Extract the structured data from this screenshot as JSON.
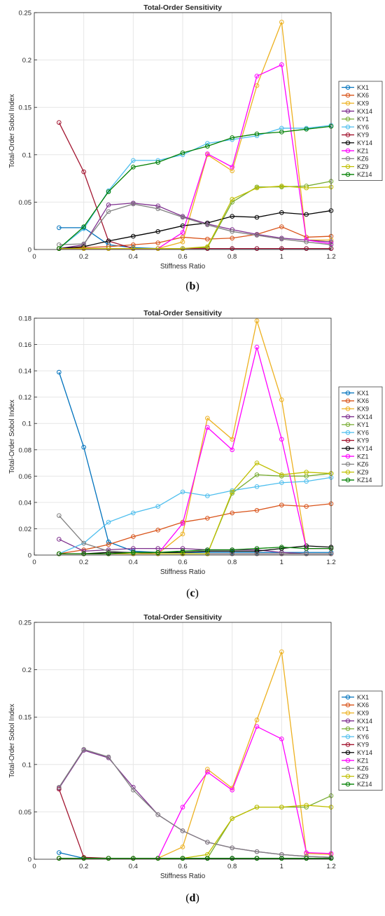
{
  "series_colors": {
    "KX1": "#0072bd",
    "KX6": "#d95319",
    "KX9": "#edb120",
    "KX14": "#7e2f8e",
    "KY1": "#77ac30",
    "KY6": "#4dbeee",
    "KY9": "#a2142f",
    "KY14": "#000000",
    "KZ1": "#ff00ff",
    "KZ6": "#808080",
    "KZ9": "#bfbf00",
    "KZ14": "#007f00"
  },
  "panels": [
    {
      "caption_open": "(",
      "caption_letter": "b",
      "caption_close": ")",
      "chart_data": {
        "type": "line",
        "title": "Total-Order Sensitivity",
        "xlabel": "Stiffness Ratio",
        "ylabel": "Total-Order Sobol Index",
        "xlim": [
          0,
          1.2
        ],
        "ylim": [
          0,
          0.25
        ],
        "x_ticks": [
          "0",
          "0.2",
          "0.4",
          "0.6",
          "0.8",
          "1",
          "1.2"
        ],
        "y_ticks": [
          "0",
          "0.05",
          "0.1",
          "0.15",
          "0.2",
          "0.25"
        ],
        "grid": true,
        "legend_position": "right",
        "x": [
          0.1,
          0.2,
          0.3,
          0.4,
          0.5,
          0.6,
          0.7,
          0.8,
          0.9,
          1.0,
          1.1,
          1.2
        ],
        "series": [
          {
            "name": "KX1",
            "values": [
              0.023,
              0.023,
              0.005,
              0.002,
              0.001,
              0.001,
              0.001,
              0.001,
              0.001,
              0.001,
              0.001,
              0.001
            ]
          },
          {
            "name": "KX6",
            "values": [
              0.001,
              0.002,
              0.003,
              0.005,
              0.007,
              0.013,
              0.011,
              0.012,
              0.016,
              0.024,
              0.013,
              0.014
            ]
          },
          {
            "name": "KX9",
            "values": [
              0.001,
              0.001,
              0.001,
              0.001,
              0.001,
              0.008,
              0.1,
              0.083,
              0.173,
              0.24,
              0.01,
              0.01
            ]
          },
          {
            "name": "KX14",
            "values": [
              0.001,
              0.005,
              0.047,
              0.049,
              0.046,
              0.035,
              0.027,
              0.021,
              0.016,
              0.012,
              0.01,
              0.008
            ]
          },
          {
            "name": "KY1",
            "values": [
              0.001,
              0.001,
              0.001,
              0.001,
              0.001,
              0.001,
              0.002,
              0.05,
              0.066,
              0.066,
              0.067,
              0.072
            ]
          },
          {
            "name": "KY6",
            "values": [
              0.001,
              0.022,
              0.062,
              0.094,
              0.094,
              0.1,
              0.112,
              0.116,
              0.12,
              0.128,
              0.128,
              0.131
            ]
          },
          {
            "name": "KY9",
            "values": [
              0.134,
              0.082,
              0.009,
              0.001,
              0.001,
              0.001,
              0.001,
              0.001,
              0.001,
              0.001,
              0.001,
              0.001
            ]
          },
          {
            "name": "KY14",
            "values": [
              0.001,
              0.003,
              0.009,
              0.014,
              0.019,
              0.025,
              0.028,
              0.035,
              0.034,
              0.039,
              0.037,
              0.041
            ]
          },
          {
            "name": "KZ1",
            "values": [
              0.001,
              0.001,
              0.001,
              0.001,
              0.001,
              0.018,
              0.101,
              0.087,
              0.183,
              0.195,
              0.01,
              0.006
            ]
          },
          {
            "name": "KZ6",
            "values": [
              0.005,
              0.006,
              0.04,
              0.048,
              0.043,
              0.034,
              0.026,
              0.019,
              0.015,
              0.011,
              0.008,
              0.005
            ]
          },
          {
            "name": "KZ9",
            "values": [
              0.001,
              0.001,
              0.001,
              0.001,
              0.001,
              0.001,
              0.003,
              0.053,
              0.065,
              0.067,
              0.065,
              0.066
            ]
          },
          {
            "name": "KZ14",
            "values": [
              0.001,
              0.024,
              0.061,
              0.087,
              0.092,
              0.102,
              0.109,
              0.118,
              0.122,
              0.124,
              0.127,
              0.13
            ]
          }
        ]
      }
    },
    {
      "caption_open": "(",
      "caption_letter": "c",
      "caption_close": ")",
      "chart_data": {
        "type": "line",
        "title": "Total-Order Sensitivity",
        "xlabel": "Stiffness Ratio",
        "ylabel": "Total-Order Sobol Index",
        "xlim": [
          0,
          1.2
        ],
        "ylim": [
          0,
          0.18
        ],
        "x_ticks": [
          "0",
          "0.2",
          "0.4",
          "0.6",
          "0.8",
          "1",
          "1.2"
        ],
        "y_ticks": [
          "0",
          "0.02",
          "0.04",
          "0.06",
          "0.08",
          "0.1",
          "0.12",
          "0.14",
          "0.16",
          "0.18"
        ],
        "grid": true,
        "legend_position": "right",
        "x": [
          0.1,
          0.2,
          0.3,
          0.4,
          0.5,
          0.6,
          0.7,
          0.8,
          0.9,
          1.0,
          1.1,
          1.2
        ],
        "series": [
          {
            "name": "KX1",
            "values": [
              0.139,
              0.082,
              0.01,
              0.003,
              0.002,
              0.002,
              0.002,
              0.002,
              0.002,
              0.002,
              0.002,
              0.002
            ]
          },
          {
            "name": "KX6",
            "values": [
              0.001,
              0.004,
              0.008,
              0.014,
              0.019,
              0.025,
              0.028,
              0.032,
              0.034,
              0.038,
              0.037,
              0.039
            ]
          },
          {
            "name": "KX9",
            "values": [
              0.001,
              0.001,
              0.001,
              0.001,
              0.001,
              0.016,
              0.104,
              0.088,
              0.178,
              0.118,
              0.005,
              0.005
            ]
          },
          {
            "name": "KX14",
            "values": [
              0.012,
              0.003,
              0.004,
              0.005,
              0.005,
              0.005,
              0.004,
              0.004,
              0.004,
              0.002,
              0.001,
              0.001
            ]
          },
          {
            "name": "KY1",
            "values": [
              0.001,
              0.001,
              0.001,
              0.001,
              0.001,
              0.001,
              0.001,
              0.047,
              0.061,
              0.06,
              0.06,
              0.062
            ]
          },
          {
            "name": "KY6",
            "values": [
              0.001,
              0.009,
              0.025,
              0.032,
              0.037,
              0.048,
              0.045,
              0.049,
              0.052,
              0.055,
              0.056,
              0.059
            ]
          },
          {
            "name": "KY9",
            "values": [
              0.001,
              0.001,
              0.001,
              0.001,
              0.001,
              0.001,
              0.001,
              0.001,
              0.001,
              0.001,
              0.001,
              0.001
            ]
          },
          {
            "name": "KY14",
            "values": [
              0.001,
              0.001,
              0.002,
              0.002,
              0.002,
              0.002,
              0.003,
              0.003,
              0.003,
              0.005,
              0.007,
              0.006
            ]
          },
          {
            "name": "KZ1",
            "values": [
              0.001,
              0.001,
              0.001,
              0.001,
              0.001,
              0.024,
              0.097,
              0.08,
              0.158,
              0.088,
              0.005,
              0.005
            ]
          },
          {
            "name": "KZ6",
            "values": [
              0.03,
              0.009,
              0.003,
              0.002,
              0.001,
              0.001,
              0.001,
              0.001,
              0.001,
              0.001,
              0.001,
              0.001
            ]
          },
          {
            "name": "KZ9",
            "values": [
              0.001,
              0.001,
              0.001,
              0.001,
              0.001,
              0.001,
              0.001,
              0.048,
              0.07,
              0.061,
              0.063,
              0.062
            ]
          },
          {
            "name": "KZ14",
            "values": [
              0.001,
              0.001,
              0.001,
              0.002,
              0.002,
              0.003,
              0.004,
              0.004,
              0.005,
              0.006,
              0.005,
              0.005
            ]
          }
        ]
      }
    },
    {
      "caption_open": "(",
      "caption_letter": "d",
      "caption_close": ")",
      "chart_data": {
        "type": "line",
        "title": "Total-Order Sensitivity",
        "xlabel": "Stiffness Ratio",
        "ylabel": "Total-Order Sobol Index",
        "xlim": [
          0,
          1.2
        ],
        "ylim": [
          0,
          0.25
        ],
        "x_ticks": [
          "0",
          "0.2",
          "0.4",
          "0.6",
          "0.8",
          "1",
          "1.2"
        ],
        "y_ticks": [
          "0",
          "0.05",
          "0.1",
          "0.15",
          "0.2",
          "0.25"
        ],
        "grid": true,
        "legend_position": "right",
        "x": [
          0.1,
          0.2,
          0.3,
          0.4,
          0.5,
          0.6,
          0.7,
          0.8,
          0.9,
          1.0,
          1.1,
          1.2
        ],
        "series": [
          {
            "name": "KX1",
            "values": [
              0.007,
              0.001,
              0.001,
              0.001,
              0.001,
              0.001,
              0.001,
              0.001,
              0.001,
              0.001,
              0.001,
              0.001
            ]
          },
          {
            "name": "KX6",
            "values": [
              0.001,
              0.001,
              0.001,
              0.001,
              0.001,
              0.001,
              0.001,
              0.001,
              0.001,
              0.001,
              0.001,
              0.001
            ]
          },
          {
            "name": "KX9",
            "values": [
              0.001,
              0.001,
              0.001,
              0.001,
              0.001,
              0.013,
              0.095,
              0.075,
              0.147,
              0.219,
              0.006,
              0.005
            ]
          },
          {
            "name": "KX14",
            "values": [
              0.075,
              0.115,
              0.107,
              0.076,
              0.047,
              0.03,
              0.018,
              0.012,
              0.008,
              0.005,
              0.003,
              0.002
            ]
          },
          {
            "name": "KY1",
            "values": [
              0.001,
              0.001,
              0.001,
              0.001,
              0.001,
              0.001,
              0.001,
              0.043,
              0.055,
              0.055,
              0.055,
              0.067
            ]
          },
          {
            "name": "KY6",
            "values": [
              0.001,
              0.001,
              0.001,
              0.001,
              0.001,
              0.001,
              0.001,
              0.001,
              0.001,
              0.001,
              0.001,
              0.001
            ]
          },
          {
            "name": "KY9",
            "values": [
              0.074,
              0.002,
              0.001,
              0.001,
              0.001,
              0.001,
              0.001,
              0.001,
              0.001,
              0.001,
              0.001,
              0.001
            ]
          },
          {
            "name": "KY14",
            "values": [
              0.001,
              0.001,
              0.001,
              0.001,
              0.001,
              0.001,
              0.001,
              0.001,
              0.001,
              0.001,
              0.001,
              0.001
            ]
          },
          {
            "name": "KZ1",
            "values": [
              0.001,
              0.001,
              0.001,
              0.001,
              0.001,
              0.055,
              0.092,
              0.073,
              0.14,
              0.127,
              0.007,
              0.006
            ]
          },
          {
            "name": "KZ6",
            "values": [
              0.076,
              0.116,
              0.108,
              0.073,
              0.047,
              0.03,
              0.018,
              0.012,
              0.008,
              0.005,
              0.003,
              0.002
            ]
          },
          {
            "name": "KZ9",
            "values": [
              0.001,
              0.001,
              0.001,
              0.001,
              0.001,
              0.001,
              0.005,
              0.043,
              0.055,
              0.055,
              0.057,
              0.055
            ]
          },
          {
            "name": "KZ14",
            "values": [
              0.001,
              0.001,
              0.001,
              0.001,
              0.001,
              0.001,
              0.001,
              0.001,
              0.001,
              0.001,
              0.001,
              0.001
            ]
          }
        ]
      }
    }
  ]
}
